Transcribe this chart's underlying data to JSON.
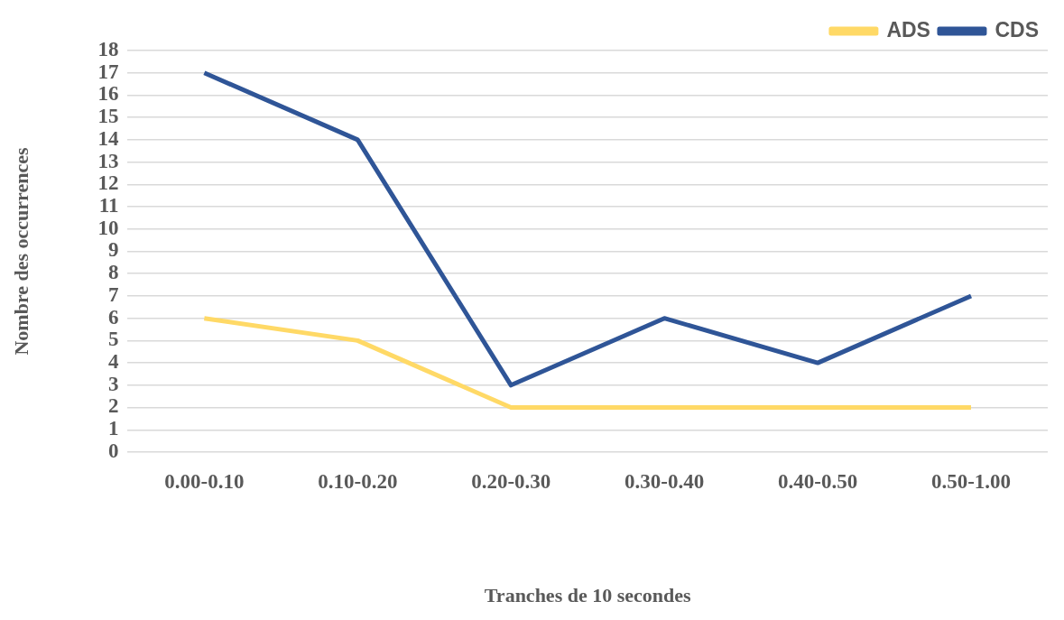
{
  "chart_data": {
    "type": "line",
    "xlabel": "Tranches de 10 secondes",
    "ylabel": "Nombre des occurrences",
    "categories": [
      "0.00-0.10",
      "0.10-0.20",
      "0.20-0.30",
      "0.30-0.40",
      "0.40-0.50",
      "0.50-1.00"
    ],
    "series": [
      {
        "name": "ADS",
        "color": "#ffd966",
        "values": [
          6,
          5,
          2,
          2,
          2,
          2
        ]
      },
      {
        "name": "CDS",
        "color": "#2f5597",
        "values": [
          17,
          14,
          3,
          6,
          4,
          7
        ]
      }
    ],
    "ylim": [
      0,
      18
    ],
    "yticks": [
      0,
      1,
      2,
      3,
      4,
      5,
      6,
      7,
      8,
      9,
      10,
      11,
      12,
      13,
      14,
      15,
      16,
      17,
      18
    ],
    "grid": "y",
    "legend": "top right",
    "marker": "none"
  }
}
